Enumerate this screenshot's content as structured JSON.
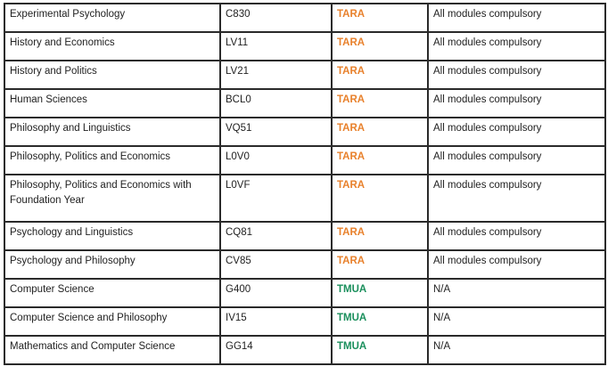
{
  "colors": {
    "tara": "#e8812c",
    "tmua": "#1a8f5c",
    "border": "#2a2a2a",
    "text": "#222222"
  },
  "rows": [
    {
      "course": "Experimental Psychology",
      "code": "C830",
      "test": "TARA",
      "modules": "All modules compulsory"
    },
    {
      "course": "History and Economics",
      "code": "LV11",
      "test": "TARA",
      "modules": "All modules compulsory"
    },
    {
      "course": "History and Politics",
      "code": "LV21",
      "test": "TARA",
      "modules": "All modules compulsory"
    },
    {
      "course": "Human Sciences",
      "code": "BCL0",
      "test": "TARA",
      "modules": "All modules compulsory"
    },
    {
      "course": "Philosophy and Linguistics",
      "code": "VQ51",
      "test": "TARA",
      "modules": "All modules compulsory"
    },
    {
      "course": "Philosophy, Politics and Economics",
      "code": "L0V0",
      "test": "TARA",
      "modules": "All modules compulsory"
    },
    {
      "course": "Philosophy, Politics and Economics with Foundation Year",
      "code": "L0VF",
      "test": "TARA",
      "modules": "All modules compulsory"
    },
    {
      "course": "Psychology and Linguistics",
      "code": "CQ81",
      "test": "TARA",
      "modules": "All modules compulsory"
    },
    {
      "course": "Psychology and Philosophy",
      "code": "CV85",
      "test": "TARA",
      "modules": "All modules compulsory"
    },
    {
      "course": "Computer Science",
      "code": "G400",
      "test": "TMUA",
      "modules": "N/A"
    },
    {
      "course": "Computer Science and Philosophy",
      "code": "IV15",
      "test": "TMUA",
      "modules": "N/A"
    },
    {
      "course": "Mathematics and Computer Science",
      "code": "GG14",
      "test": "TMUA",
      "modules": "N/A"
    }
  ]
}
